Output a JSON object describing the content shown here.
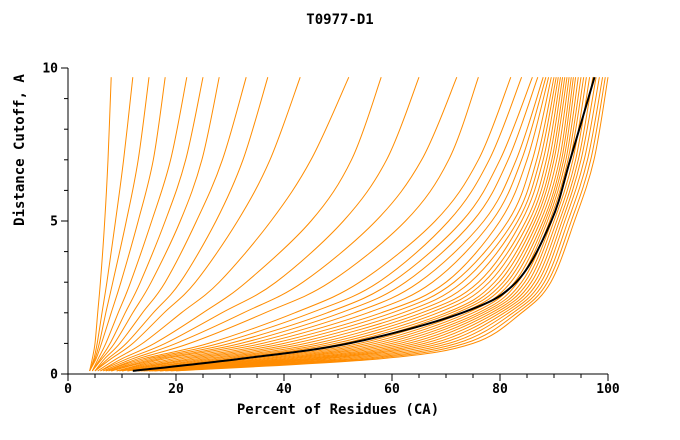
{
  "chart_data": {
    "type": "line",
    "title": "T0977-D1",
    "xlabel": "Percent of Residues (CA)",
    "ylabel": "Distance Cutoff, A",
    "xlim": [
      0,
      100
    ],
    "ylim": [
      0,
      10
    ],
    "x_major_ticks": [
      0,
      20,
      40,
      60,
      80,
      100
    ],
    "x_minor_step": 5,
    "y_major_ticks": [
      0,
      5,
      10
    ],
    "y_minor_step": 1,
    "grid": false,
    "legend": "none",
    "colors": {
      "model": "#ff8c00",
      "reference": "#000000",
      "axis": "#000000"
    },
    "y_levels": [
      0.1,
      0.5,
      1,
      2,
      3,
      5,
      7,
      9.7
    ],
    "series_orange": [
      [
        4,
        4.5,
        5,
        5.5,
        6,
        6.8,
        7.4,
        8
      ],
      [
        4,
        4.8,
        5.4,
        6.3,
        7.2,
        8.8,
        10.3,
        12
      ],
      [
        4,
        5,
        5.8,
        7,
        8.3,
        10.8,
        13,
        15
      ],
      [
        4,
        5.2,
        6.2,
        8,
        9.8,
        13,
        15.8,
        18
      ],
      [
        4.5,
        5.6,
        7,
        9.3,
        11.6,
        15.5,
        19,
        22
      ],
      [
        4.5,
        6,
        7.8,
        10.6,
        13.4,
        18,
        21.8,
        25
      ],
      [
        4.5,
        6.3,
        8.6,
        12,
        15.4,
        20.8,
        24.8,
        28
      ],
      [
        5,
        6.8,
        9.6,
        13.8,
        18,
        23.8,
        28.6,
        33
      ],
      [
        5,
        7.4,
        10.8,
        15.8,
        20.8,
        27.4,
        32.4,
        37
      ],
      [
        5,
        8,
        12,
        17.8,
        23.6,
        31.4,
        37.4,
        43
      ],
      [
        5.5,
        9,
        13.8,
        21,
        28,
        37.6,
        45,
        52
      ],
      [
        6,
        10,
        16,
        25,
        33,
        45,
        52.5,
        58
      ],
      [
        6,
        11,
        18,
        28.5,
        38.5,
        51,
        59,
        65
      ],
      [
        6.5,
        12,
        20,
        32.5,
        43.5,
        57,
        65.5,
        72
      ],
      [
        7,
        13,
        22.5,
        36.5,
        48.5,
        62.5,
        70.5,
        76
      ],
      [
        7,
        14,
        26,
        42,
        54,
        68,
        76,
        82
      ],
      [
        7.5,
        15,
        28,
        45,
        57.5,
        70.5,
        78,
        84
      ],
      [
        8,
        16,
        30,
        48,
        60,
        73,
        80,
        86
      ],
      [
        8,
        17,
        32,
        50.5,
        62.5,
        75,
        81.5,
        87
      ],
      [
        9,
        18,
        34,
        53,
        65,
        77,
        83,
        88
      ],
      [
        9,
        19.5,
        36,
        55.5,
        67.5,
        78.5,
        84,
        88.5
      ],
      [
        9.5,
        21,
        38,
        58,
        70,
        80,
        85,
        89
      ],
      [
        10,
        22.5,
        40,
        60,
        71.5,
        81.5,
        86,
        89.5
      ],
      [
        10,
        24,
        42,
        62,
        73,
        82.5,
        86.8,
        90
      ],
      [
        11,
        25.5,
        44,
        63.8,
        74.5,
        83.3,
        87.4,
        90.4
      ],
      [
        11,
        27,
        46,
        65.5,
        76,
        84,
        88,
        90.8
      ],
      [
        12,
        28.5,
        47.8,
        67,
        77,
        84.8,
        88.6,
        91.2
      ],
      [
        12,
        30,
        49.5,
        68.5,
        78,
        85.4,
        89.1,
        91.6
      ],
      [
        12.5,
        31.5,
        51,
        70,
        79,
        86,
        89.6,
        92
      ],
      [
        13,
        33,
        52.5,
        71,
        79.8,
        86.5,
        90,
        92.4
      ],
      [
        13,
        34.5,
        54,
        72,
        80.6,
        87,
        90.5,
        92.8
      ],
      [
        13.5,
        36,
        55.5,
        73,
        81.3,
        87.5,
        91,
        93.2
      ],
      [
        14,
        37.5,
        57,
        74,
        82,
        88,
        91.4,
        93.6
      ],
      [
        14,
        39,
        58.5,
        75,
        82.7,
        88.4,
        91.8,
        94
      ],
      [
        14.5,
        40.5,
        60,
        76,
        83.3,
        88.8,
        92.2,
        94.5
      ],
      [
        15,
        42,
        61.5,
        76.8,
        84,
        89.2,
        92.6,
        95
      ],
      [
        15,
        43.5,
        63,
        77.6,
        84.6,
        89.6,
        93,
        95.5
      ],
      [
        15.5,
        45,
        64.5,
        78.4,
        85.2,
        90,
        93.5,
        96
      ],
      [
        16,
        46.5,
        66,
        79.2,
        85.8,
        90.5,
        94,
        96.6
      ],
      [
        16,
        48,
        67.5,
        80,
        86.4,
        91,
        94.5,
        97.2
      ],
      [
        17,
        50,
        69,
        80.8,
        87,
        91.5,
        95,
        97.8
      ],
      [
        17,
        52,
        70.5,
        81.6,
        87.6,
        92,
        95.6,
        98.4
      ],
      [
        18,
        54,
        72,
        82.4,
        88.2,
        92.6,
        96.2,
        99
      ],
      [
        19,
        56,
        73.5,
        83.2,
        88.8,
        93.2,
        96.8,
        99.5
      ],
      [
        20,
        58,
        75,
        84,
        89.4,
        93.8,
        97.4,
        100
      ]
    ],
    "series_black": [
      12,
      32,
      52,
      73,
      83,
      89.5,
      93,
      97.5
    ]
  }
}
